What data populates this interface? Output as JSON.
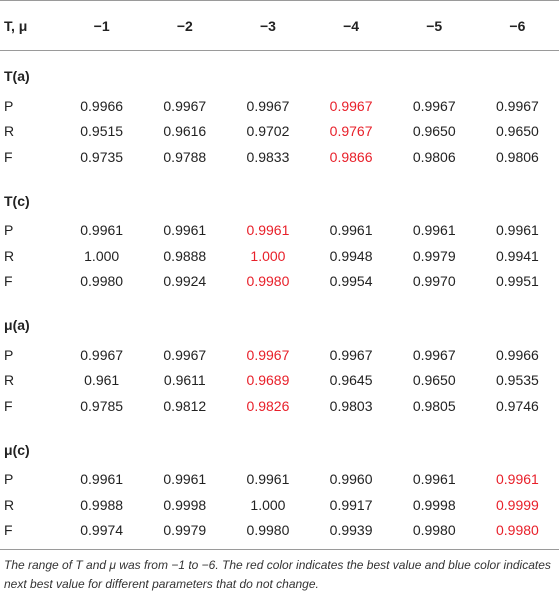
{
  "table": {
    "header": [
      "T, μ",
      "−1",
      "−2",
      "−3",
      "−4",
      "−5",
      "−6"
    ],
    "sections": [
      {
        "title": "T(a)",
        "rows": [
          {
            "label": "P",
            "values": [
              "0.9966",
              "0.9967",
              "0.9967",
              "0.9967",
              "0.9967",
              "0.9967"
            ],
            "best": [
              3
            ]
          },
          {
            "label": "R",
            "values": [
              "0.9515",
              "0.9616",
              "0.9702",
              "0.9767",
              "0.9650",
              "0.9650"
            ],
            "best": [
              3
            ]
          },
          {
            "label": "F",
            "values": [
              "0.9735",
              "0.9788",
              "0.9833",
              "0.9866",
              "0.9806",
              "0.9806"
            ],
            "best": [
              3
            ]
          }
        ]
      },
      {
        "title": "T(c)",
        "rows": [
          {
            "label": "P",
            "values": [
              "0.9961",
              "0.9961",
              "0.9961",
              "0.9961",
              "0.9961",
              "0.9961"
            ],
            "best": [
              2
            ]
          },
          {
            "label": "R",
            "values": [
              "1.000",
              "0.9888",
              "1.000",
              "0.9948",
              "0.9979",
              "0.9941"
            ],
            "best": [
              2
            ]
          },
          {
            "label": "F",
            "values": [
              "0.9980",
              "0.9924",
              "0.9980",
              "0.9954",
              "0.9970",
              "0.9951"
            ],
            "best": [
              2
            ]
          }
        ]
      },
      {
        "title": "μ(a)",
        "rows": [
          {
            "label": "P",
            "values": [
              "0.9967",
              "0.9967",
              "0.9967",
              "0.9967",
              "0.9967",
              "0.9966"
            ],
            "best": [
              2
            ]
          },
          {
            "label": "R",
            "values": [
              "0.961",
              "0.9611",
              "0.9689",
              "0.9645",
              "0.9650",
              "0.9535"
            ],
            "best": [
              2
            ]
          },
          {
            "label": "F",
            "values": [
              "0.9785",
              "0.9812",
              "0.9826",
              "0.9803",
              "0.9805",
              "0.9746"
            ],
            "best": [
              2
            ]
          }
        ]
      },
      {
        "title": "μ(c)",
        "rows": [
          {
            "label": "P",
            "values": [
              "0.9961",
              "0.9961",
              "0.9961",
              "0.9960",
              "0.9961",
              "0.9961"
            ],
            "best": [
              5
            ]
          },
          {
            "label": "R",
            "values": [
              "0.9988",
              "0.9998",
              "1.000",
              "0.9917",
              "0.9998",
              "0.9999"
            ],
            "best": [
              5
            ]
          },
          {
            "label": "F",
            "values": [
              "0.9974",
              "0.9979",
              "0.9980",
              "0.9939",
              "0.9980",
              "0.9980"
            ],
            "best": [
              5
            ]
          }
        ]
      }
    ]
  },
  "caption": "The range of T and μ was from −1 to −6. The red color indicates the best value and blue color indicates next best value for different parameters that do not change.",
  "colors": {
    "best": "#e8202a",
    "text": "#222222",
    "rule": "#9a9a9a"
  }
}
